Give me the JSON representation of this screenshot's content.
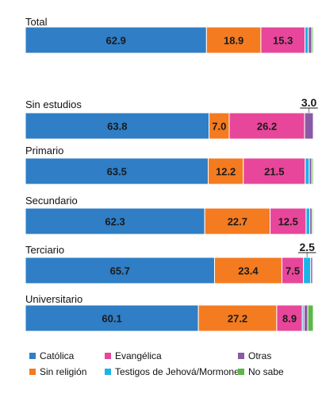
{
  "chart_data": {
    "type": "bar",
    "stacked": true,
    "orientation": "horizontal",
    "categories": [
      "Total",
      "Sin estudios",
      "Primario",
      "Secundario",
      "Terciario",
      "Universitario"
    ],
    "series": [
      {
        "name": "Católica",
        "color": "#2f7ec6",
        "values": [
          62.9,
          63.8,
          63.5,
          62.3,
          65.7,
          60.1
        ]
      },
      {
        "name": "Sin religión",
        "color": "#f47b20",
        "values": [
          18.9,
          7.0,
          12.2,
          22.7,
          23.4,
          27.2
        ]
      },
      {
        "name": "Evangélica",
        "color": "#e8469a",
        "values": [
          15.3,
          26.2,
          21.5,
          12.5,
          7.5,
          8.9
        ]
      },
      {
        "name": "Testigos de Jehová/Mormones",
        "color": "#1ab4e8",
        "values": [
          1.2,
          0.0,
          1.4,
          1.3,
          2.5,
          0.6
        ]
      },
      {
        "name": "Otras",
        "color": "#8a5aa6",
        "values": [
          1.2,
          3.0,
          0.9,
          0.8,
          0.7,
          1.3
        ]
      },
      {
        "name": "No sabe",
        "color": "#5bb848",
        "values": [
          0.5,
          0.0,
          0.5,
          0.4,
          0.2,
          1.9
        ]
      }
    ],
    "data_labels": [
      [
        "62.9",
        "18.9",
        "15.3",
        "",
        "",
        ""
      ],
      [
        "63.8",
        "7.0",
        "26.2",
        "",
        "",
        ""
      ],
      [
        "63.5",
        "12.2",
        "21.5",
        "",
        "",
        ""
      ],
      [
        "62.3",
        "22.7",
        "12.5",
        "",
        "",
        ""
      ],
      [
        "65.7",
        "23.4",
        "7.5",
        "",
        "",
        ""
      ],
      [
        "60.1",
        "27.2",
        "8.9",
        "",
        "",
        ""
      ]
    ],
    "callouts": [
      {
        "category": "Sin estudios",
        "series": "Otras",
        "label": "3.0"
      },
      {
        "category": "Terciario",
        "series": "Testigos de Jehová/Mormones",
        "label": "2.5"
      }
    ],
    "xlim": [
      0,
      100
    ],
    "legend_position": "bottom",
    "title": "",
    "xlabel": "",
    "ylabel": ""
  }
}
